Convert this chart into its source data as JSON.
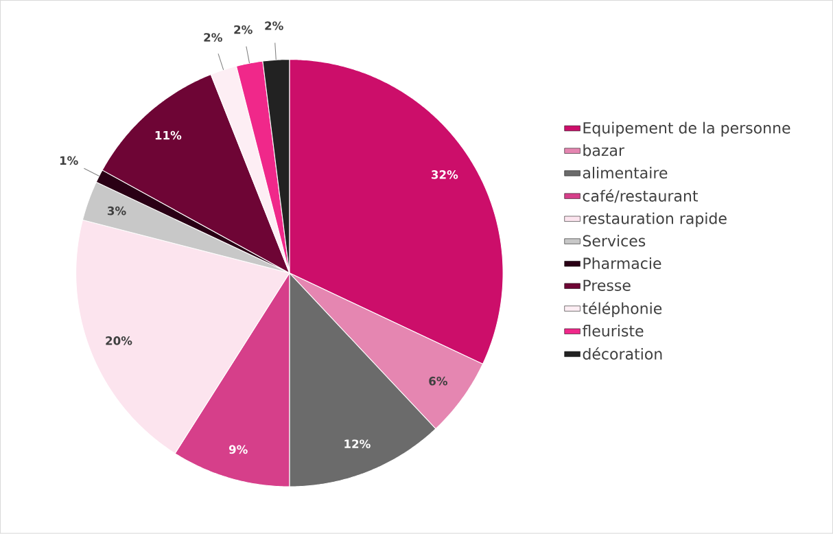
{
  "chart_data": {
    "type": "pie",
    "categories": [
      "Equipement de la personne",
      "bazar",
      "alimentaire",
      "café/restaurant",
      "restauration rapide",
      "Services",
      "Pharmacie",
      "Presse",
      "téléphonie",
      "fleuriste",
      "décoration"
    ],
    "values": [
      32,
      6,
      12,
      9,
      20,
      3,
      1,
      11,
      2,
      2,
      2
    ],
    "value_labels": [
      "32%",
      "6%",
      "12%",
      "9%",
      "20%",
      "3%",
      "1%",
      "11%",
      "2%",
      "2%",
      "2%"
    ],
    "colors": [
      "#cc0e6a",
      "#e586b1",
      "#6b6b6b",
      "#d63f8a",
      "#fce4ee",
      "#c8c8c8",
      "#2a0015",
      "#6e0535",
      "#fdeef4",
      "#f0288a",
      "#222222"
    ],
    "legend": "right"
  }
}
